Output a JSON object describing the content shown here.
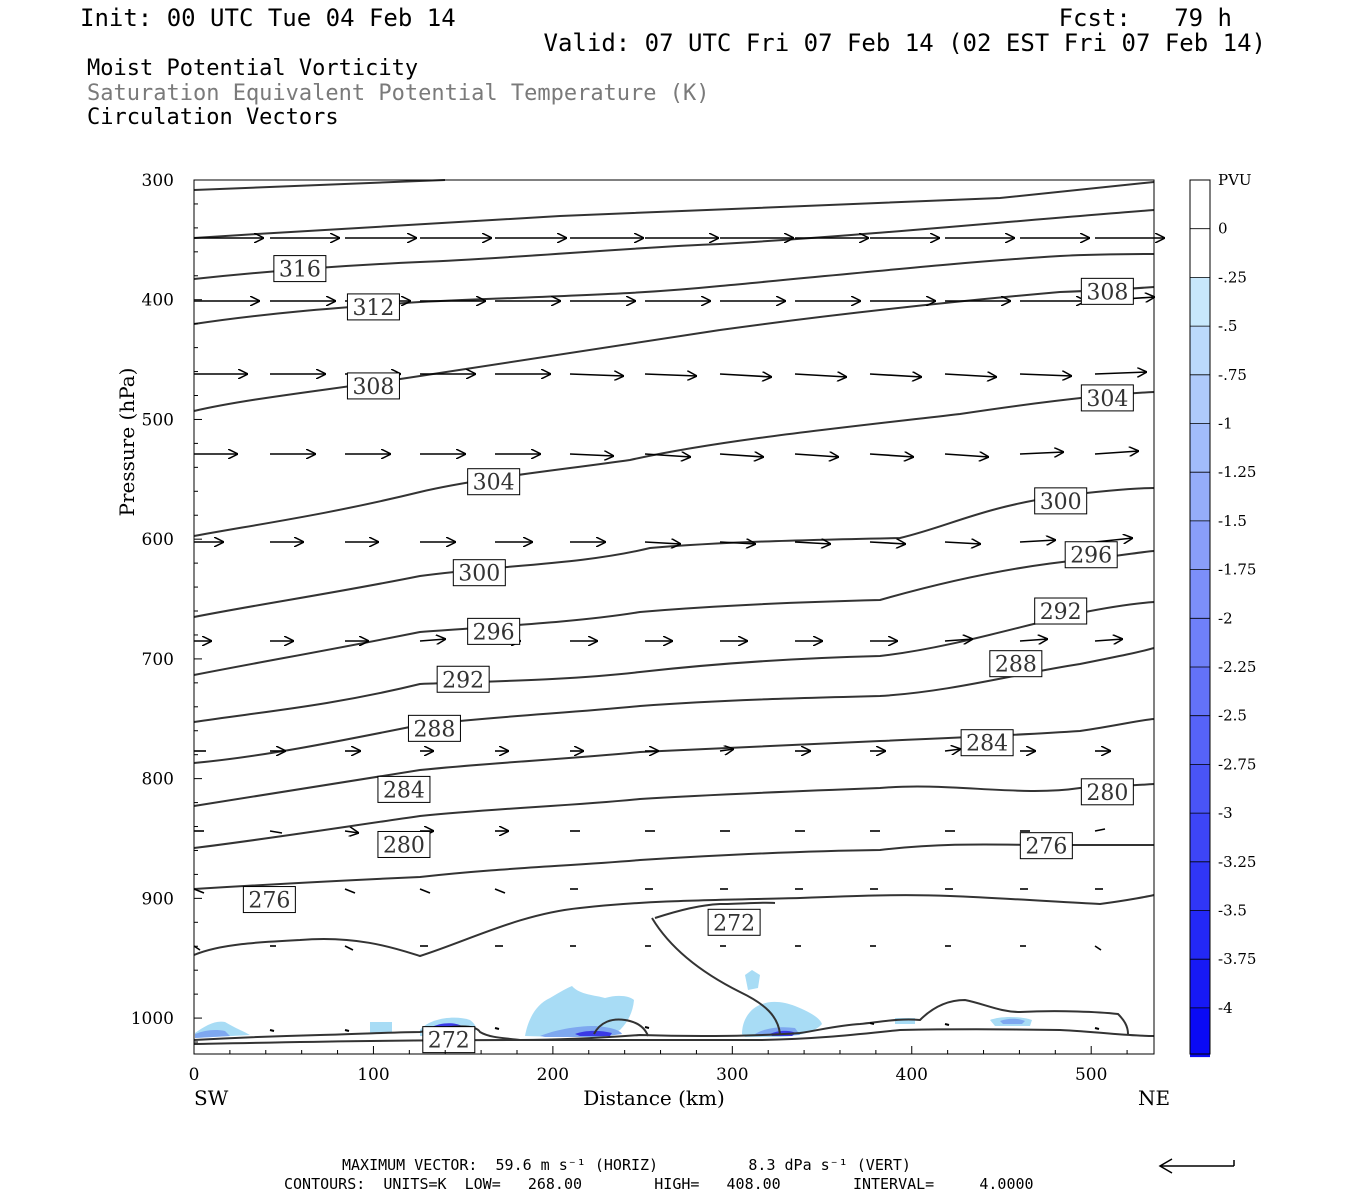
{
  "header": {
    "init": "Init: 00 UTC Tue 04 Feb 14",
    "fcst": "Fcst:   79 h",
    "valid": "Valid: 07 UTC Fri 07 Feb 14 (02 EST Fri 07 Feb 14)"
  },
  "legend_lines": {
    "line1": "Moist Potential Vorticity",
    "line2": "Saturation Equivalent Potential Temperature (K)",
    "line3": "Circulation Vectors"
  },
  "footer": {
    "line1": "MAXIMUM VECTOR:  59.6 m s⁻¹ (HORIZ)          8.3 dPa s⁻¹ (VERT)",
    "line2": "CONTOURS:  UNITS=K  LOW=   268.00        HIGH=   408.00        INTERVAL=     4.0000"
  },
  "colors": {
    "contour": "#333333",
    "vector": "#000000",
    "shade_light": "#a8dcf5",
    "shade_mid": "#7ea8f0",
    "shade_dark": "#3a3ae6"
  },
  "chart_data": {
    "type": "cross-section",
    "ylabel": "Pressure (hPa)",
    "xlabel": "Distance (km)",
    "x_end_labels": {
      "left": "SW",
      "right": "NE"
    },
    "xlim": [
      0,
      535
    ],
    "ylim": [
      300,
      1030
    ],
    "xticks": [
      0,
      100,
      200,
      300,
      400,
      500
    ],
    "yticks": [
      300,
      400,
      500,
      600,
      700,
      800,
      900,
      1000
    ],
    "contour_labels": [
      {
        "text": "316",
        "x": 59,
        "p": 374
      },
      {
        "text": "312",
        "x": 100,
        "p": 406
      },
      {
        "text": "308",
        "x": 100,
        "p": 472
      },
      {
        "text": "308",
        "x": 509,
        "p": 393
      },
      {
        "text": "304",
        "x": 167,
        "p": 552
      },
      {
        "text": "304",
        "x": 509,
        "p": 482
      },
      {
        "text": "300",
        "x": 159,
        "p": 628
      },
      {
        "text": "300",
        "x": 483,
        "p": 568
      },
      {
        "text": "296",
        "x": 167,
        "p": 677
      },
      {
        "text": "296",
        "x": 500,
        "p": 613
      },
      {
        "text": "292",
        "x": 150,
        "p": 717
      },
      {
        "text": "292",
        "x": 483,
        "p": 660
      },
      {
        "text": "288",
        "x": 134,
        "p": 758
      },
      {
        "text": "288",
        "x": 458,
        "p": 704
      },
      {
        "text": "284",
        "x": 117,
        "p": 809
      },
      {
        "text": "284",
        "x": 442,
        "p": 770
      },
      {
        "text": "280",
        "x": 117,
        "p": 855
      },
      {
        "text": "280",
        "x": 509,
        "p": 811
      },
      {
        "text": "276",
        "x": 42,
        "p": 901
      },
      {
        "text": "276",
        "x": 475,
        "p": 856
      },
      {
        "text": "272",
        "x": 301,
        "p": 920
      },
      {
        "text": "272",
        "x": 142,
        "p": 1018
      }
    ],
    "contour_levels": [
      316,
      312,
      308,
      304,
      300,
      296,
      292,
      288,
      284,
      280,
      276,
      272
    ],
    "colorbar": {
      "unit": "PVU",
      "labels": [
        "0",
        "-.25",
        "-.5",
        "-.75",
        "-1",
        "-1.25",
        "-1.5",
        "-1.75",
        "-2",
        "-2.25",
        "-2.5",
        "-2.75",
        "-3",
        "-3.25",
        "-3.5",
        "-3.75",
        "-4"
      ]
    },
    "max_vector_horiz": "59.6 m s-1",
    "max_vector_vert": "8.3 dPa s-1",
    "contour_low": 268.0,
    "contour_high": 408.0,
    "contour_interval": 4.0
  }
}
